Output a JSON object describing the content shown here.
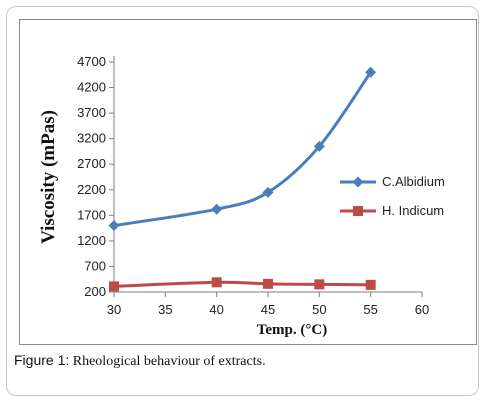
{
  "chart_data": {
    "type": "line",
    "xlabel": "Temp. (°C)",
    "ylabel": "Viscosity (mPas)",
    "xlim": [
      30,
      60
    ],
    "ylim": [
      200,
      4700
    ],
    "xticks": [
      30,
      35,
      40,
      45,
      50,
      55,
      60
    ],
    "yticks": [
      200,
      700,
      1200,
      1700,
      2200,
      2700,
      3200,
      3700,
      4200,
      4700
    ],
    "grid": false,
    "legend_position": "right",
    "series": [
      {
        "name": "C.Albidium",
        "color": "#4a7ebb",
        "marker": "diamond",
        "x": [
          30,
          40,
          45,
          50,
          55
        ],
        "y": [
          1500,
          1820,
          2150,
          3050,
          4500
        ]
      },
      {
        "name": "H. Indicum",
        "color": "#be4b48",
        "marker": "square",
        "x": [
          30,
          40,
          45,
          50,
          55
        ],
        "y": [
          310,
          390,
          360,
          350,
          340
        ]
      }
    ]
  },
  "caption": {
    "label": "Figure 1:",
    "text": "Rheological behaviour of extracts."
  }
}
